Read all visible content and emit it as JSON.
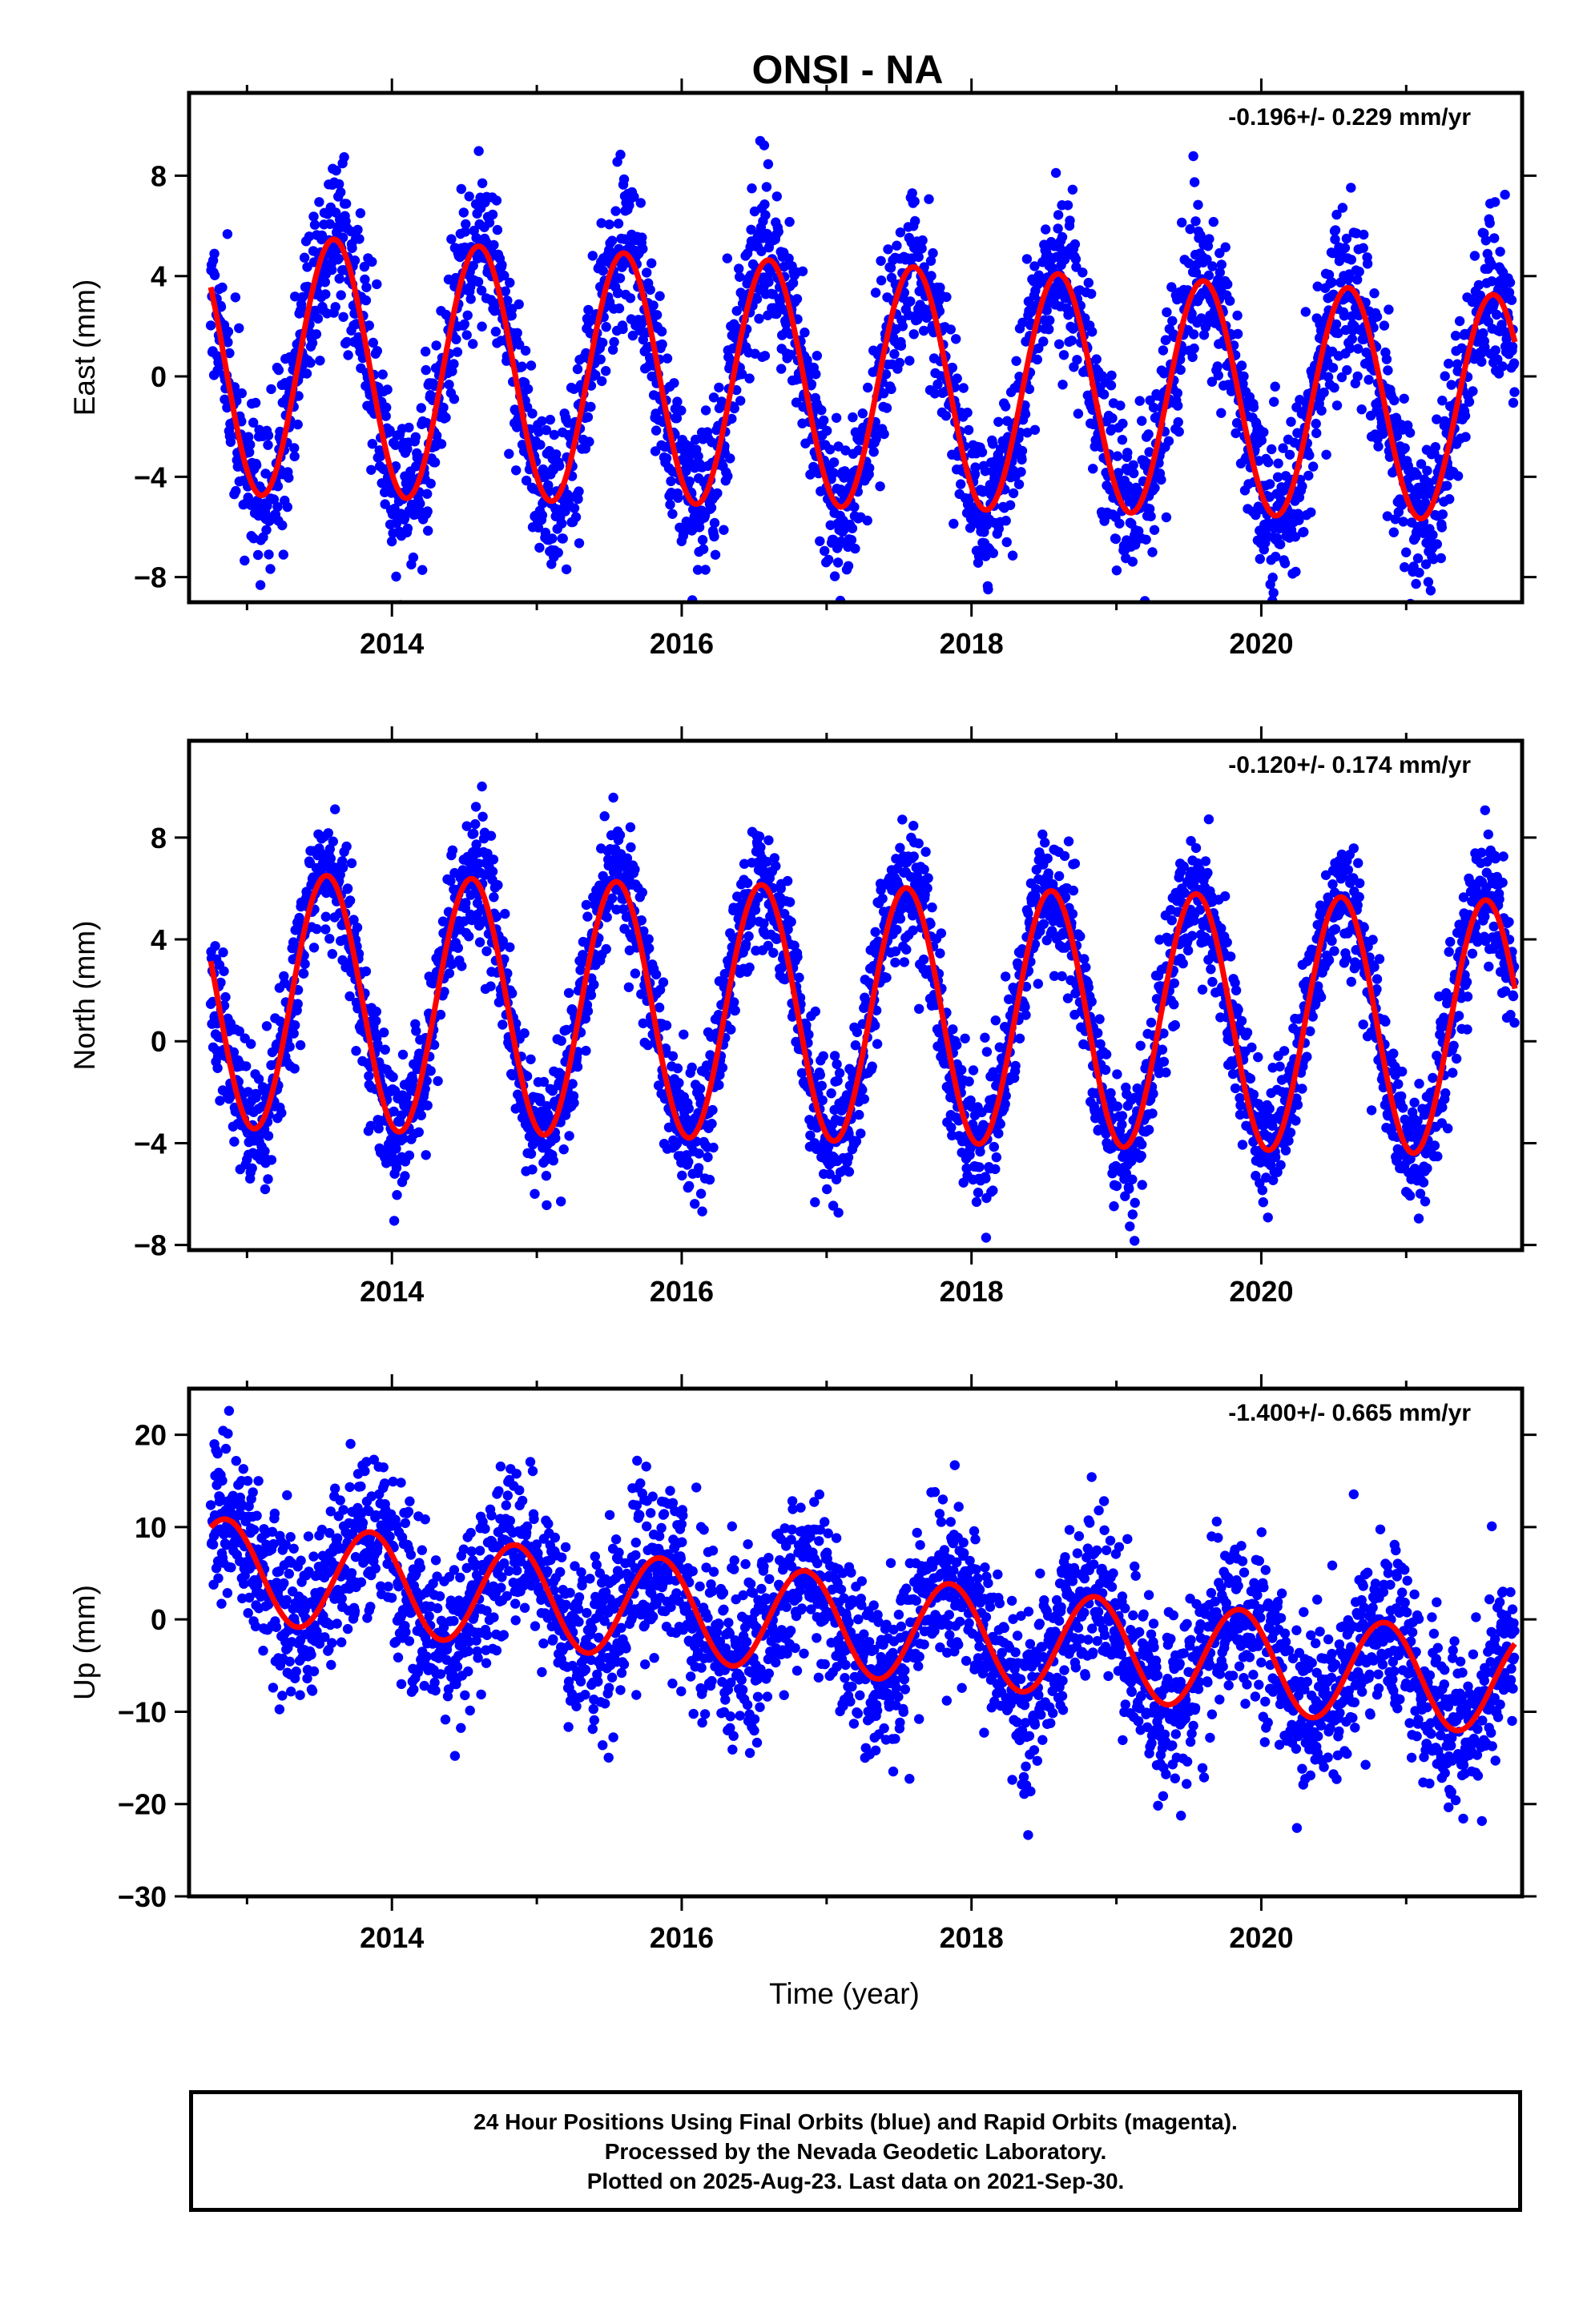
{
  "page": {
    "footer_lines": [
      "24 Hour Positions Using Final Orbits (blue) and Rapid Orbits (magenta).",
      "Processed by the Nevada Geodetic Laboratory.",
      "Plotted on 2025-Aug-23. Last data on 2021-Sep-30."
    ]
  },
  "colors": {
    "data_points": "#0000ff",
    "model_fit": "#ff0000",
    "axes": "#000000"
  },
  "chart_data": [
    {
      "type": "scatter",
      "title": "ONSI - NA",
      "ylabel": "East (mm)",
      "xlabel": "",
      "rate_label": "-0.196+/- 0.229 mm/yr",
      "xlim": [
        2012.6,
        2021.8
      ],
      "ylim": [
        -9,
        11.3
      ],
      "xticks": [
        2014,
        2016,
        2018,
        2020
      ],
      "yticks": [
        -8,
        -4,
        0,
        4,
        8
      ],
      "series": [
        {
          "role": "points",
          "start": 2012.75,
          "end": 2021.75,
          "offset": 0.5,
          "trend": -0.196,
          "amplitude": 5.2,
          "amp_trend": -0.08,
          "phase": 0.35,
          "noise": 1.6,
          "seed": 11
        },
        {
          "role": "fit",
          "start": 2012.75,
          "end": 2021.75,
          "offset": 0.5,
          "trend": -0.196,
          "amplitude": 5.2,
          "amp_trend": -0.08,
          "phase": 0.35
        }
      ]
    },
    {
      "type": "scatter",
      "title": "",
      "ylabel": "North (mm)",
      "xlabel": "",
      "rate_label": "-0.120+/- 0.174 mm/yr",
      "xlim": [
        2012.6,
        2021.8
      ],
      "ylim": [
        -8.2,
        11.8
      ],
      "xticks": [
        2014,
        2016,
        2018,
        2020
      ],
      "yticks": [
        -8,
        -4,
        0,
        4,
        8
      ],
      "series": [
        {
          "role": "points",
          "start": 2012.75,
          "end": 2021.75,
          "offset": 1.6,
          "trend": -0.12,
          "amplitude": 5.0,
          "amp_trend": 0.0,
          "phase": 0.3,
          "noise": 1.3,
          "seed": 23
        },
        {
          "role": "fit",
          "start": 2012.75,
          "end": 2021.75,
          "offset": 1.6,
          "trend": -0.12,
          "amplitude": 5.0,
          "amp_trend": 0.0,
          "phase": 0.3
        }
      ]
    },
    {
      "type": "scatter",
      "title": "",
      "ylabel": "Up (mm)",
      "xlabel": "Time (year)",
      "rate_label": "-1.400+/- 0.665 mm/yr",
      "xlim": [
        2012.6,
        2021.8
      ],
      "ylim": [
        -30,
        25
      ],
      "xticks": [
        2014,
        2016,
        2018,
        2020
      ],
      "yticks": [
        -30,
        -20,
        -10,
        0,
        10,
        20
      ],
      "series": [
        {
          "role": "points",
          "start": 2012.75,
          "end": 2021.75,
          "offset": 5.5,
          "trend": -1.4,
          "amplitude": 5.5,
          "amp_trend": 0.0,
          "phase": 0.6,
          "noise": 4.5,
          "seed": 37
        },
        {
          "role": "fit",
          "start": 2012.75,
          "end": 2021.75,
          "offset": 5.5,
          "trend": -1.4,
          "amplitude": 5.5,
          "amp_trend": 0.0,
          "phase": 0.6
        }
      ]
    }
  ]
}
